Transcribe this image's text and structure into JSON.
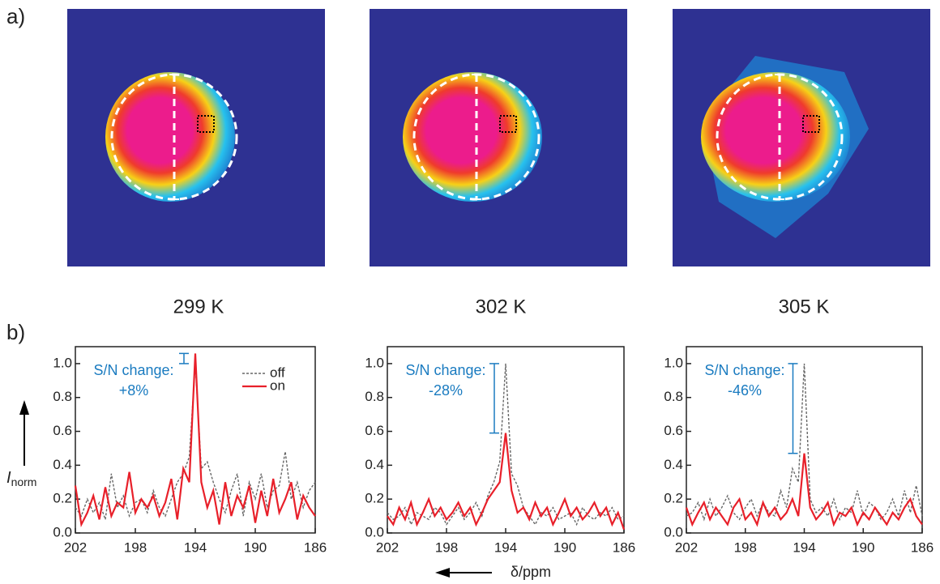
{
  "panel_labels": [
    "a)",
    "b)"
  ],
  "images": [
    {
      "label": "299 K"
    },
    {
      "label": "302 K"
    },
    {
      "label": "305 K"
    }
  ],
  "chart_data": [
    {
      "type": "line",
      "xlim": [
        202,
        186
      ],
      "xticks": [
        202,
        198,
        194,
        190,
        186
      ],
      "ylim": [
        0,
        1.1
      ],
      "yticks": [
        {
          "value": 0,
          "label": "0.0"
        },
        0.2,
        0.4,
        0.6,
        0.8,
        {
          "value": 1,
          "label": "1.0"
        }
      ],
      "y_label": {
        "main": "I",
        "sub": "norm"
      },
      "legend": "upper right",
      "annotation": [
        "S/N change:",
        "+8%"
      ],
      "bracket": [
        1.0,
        1.06
      ],
      "x": [
        202,
        201.6,
        201.2,
        200.8,
        200.4,
        200,
        199.6,
        199.2,
        198.8,
        198.4,
        198,
        197.6,
        197.2,
        196.8,
        196.4,
        196,
        195.6,
        195.2,
        194.8,
        194.4,
        194,
        193.6,
        193.2,
        192.8,
        192.4,
        192,
        191.6,
        191.2,
        190.8,
        190.4,
        190,
        189.6,
        189.2,
        188.8,
        188.4,
        188,
        187.6,
        187.2,
        186.8,
        186.4,
        186
      ],
      "series": [
        {
          "name": "off",
          "color": "#666666",
          "dash": true,
          "values": [
            0.15,
            0.1,
            0.2,
            0.12,
            0.18,
            0.08,
            0.35,
            0.15,
            0.22,
            0.1,
            0.18,
            0.2,
            0.12,
            0.25,
            0.15,
            0.1,
            0.2,
            0.3,
            0.35,
            0.45,
            1.0,
            0.38,
            0.42,
            0.3,
            0.2,
            0.12,
            0.25,
            0.35,
            0.1,
            0.3,
            0.2,
            0.35,
            0.15,
            0.25,
            0.28,
            0.48,
            0.2,
            0.3,
            0.15,
            0.25,
            0.3
          ]
        },
        {
          "name": "on",
          "color": "#e8202a",
          "dash": false,
          "values": [
            0.28,
            0.05,
            0.12,
            0.22,
            0.08,
            0.27,
            0.1,
            0.18,
            0.15,
            0.36,
            0.12,
            0.2,
            0.15,
            0.22,
            0.1,
            0.18,
            0.32,
            0.08,
            0.38,
            0.3,
            1.06,
            0.3,
            0.15,
            0.25,
            0.05,
            0.3,
            0.1,
            0.22,
            0.15,
            0.28,
            0.06,
            0.25,
            0.1,
            0.32,
            0.12,
            0.2,
            0.3,
            0.08,
            0.22,
            0.15,
            0.1
          ]
        }
      ]
    },
    {
      "type": "line",
      "xlim": [
        202,
        186
      ],
      "xticks": [
        202,
        198,
        194,
        190,
        186
      ],
      "ylim": [
        0,
        1.1
      ],
      "yticks": [
        {
          "value": 0,
          "label": "0.0"
        },
        0.2,
        0.4,
        0.6,
        0.8,
        {
          "value": 1,
          "label": "1.0"
        }
      ],
      "x_label": "δ/ppm",
      "annotation": [
        "S/N change:",
        "-28%"
      ],
      "bracket": [
        0.59,
        1.0
      ],
      "x": [
        202,
        201.6,
        201.2,
        200.8,
        200.4,
        200,
        199.6,
        199.2,
        198.8,
        198.4,
        198,
        197.6,
        197.2,
        196.8,
        196.4,
        196,
        195.6,
        195.2,
        194.8,
        194.4,
        194,
        193.6,
        193.2,
        192.8,
        192.4,
        192,
        191.6,
        191.2,
        190.8,
        190.4,
        190,
        189.6,
        189.2,
        188.8,
        188.4,
        188,
        187.6,
        187.2,
        186.8,
        186.4,
        186
      ],
      "series": [
        {
          "color": "#666666",
          "dash": true,
          "values": [
            0.12,
            0.08,
            0.1,
            0.15,
            0.05,
            0.12,
            0.1,
            0.08,
            0.15,
            0.12,
            0.05,
            0.1,
            0.15,
            0.08,
            0.12,
            0.18,
            0.1,
            0.22,
            0.3,
            0.42,
            1.0,
            0.35,
            0.28,
            0.15,
            0.1,
            0.05,
            0.12,
            0.1,
            0.15,
            0.08,
            0.1,
            0.12,
            0.05,
            0.15,
            0.1,
            0.08,
            0.12,
            0.1,
            0.15,
            0.08,
            0.1
          ]
        },
        {
          "color": "#e8202a",
          "dash": false,
          "values": [
            0.1,
            0.05,
            0.15,
            0.08,
            0.18,
            0.05,
            0.12,
            0.2,
            0.1,
            0.15,
            0.08,
            0.12,
            0.18,
            0.1,
            0.15,
            0.05,
            0.12,
            0.2,
            0.25,
            0.3,
            0.59,
            0.25,
            0.12,
            0.15,
            0.08,
            0.18,
            0.1,
            0.15,
            0.05,
            0.12,
            0.2,
            0.1,
            0.15,
            0.08,
            0.12,
            0.18,
            0.1,
            0.15,
            0.05,
            0.12,
            0.02
          ]
        }
      ]
    },
    {
      "type": "line",
      "xlim": [
        202,
        186
      ],
      "xticks": [
        202,
        198,
        194,
        190,
        186
      ],
      "ylim": [
        0,
        1.1
      ],
      "yticks": [
        {
          "value": 0,
          "label": "0.0"
        },
        0.2,
        0.4,
        0.6,
        0.8,
        {
          "value": 1,
          "label": "1.0"
        }
      ],
      "annotation": [
        "S/N change:",
        "-46%"
      ],
      "bracket": [
        0.47,
        1.0
      ],
      "x": [
        202,
        201.6,
        201.2,
        200.8,
        200.4,
        200,
        199.6,
        199.2,
        198.8,
        198.4,
        198,
        197.6,
        197.2,
        196.8,
        196.4,
        196,
        195.6,
        195.2,
        194.8,
        194.4,
        194,
        193.6,
        193.2,
        192.8,
        192.4,
        192,
        191.6,
        191.2,
        190.8,
        190.4,
        190,
        189.6,
        189.2,
        188.8,
        188.4,
        188,
        187.6,
        187.2,
        186.8,
        186.4,
        186
      ],
      "series": [
        {
          "color": "#666666",
          "dash": true,
          "values": [
            0.1,
            0.12,
            0.18,
            0.08,
            0.2,
            0.1,
            0.15,
            0.22,
            0.12,
            0.08,
            0.15,
            0.2,
            0.1,
            0.18,
            0.12,
            0.1,
            0.25,
            0.15,
            0.38,
            0.3,
            1.0,
            0.2,
            0.12,
            0.15,
            0.1,
            0.2,
            0.08,
            0.15,
            0.12,
            0.25,
            0.1,
            0.18,
            0.15,
            0.08,
            0.12,
            0.2,
            0.1,
            0.25,
            0.12,
            0.28,
            0.1
          ]
        },
        {
          "color": "#e8202a",
          "dash": false,
          "values": [
            0.15,
            0.05,
            0.12,
            0.18,
            0.08,
            0.15,
            0.1,
            0.05,
            0.15,
            0.2,
            0.08,
            0.12,
            0.05,
            0.18,
            0.1,
            0.15,
            0.08,
            0.12,
            0.2,
            0.1,
            0.47,
            0.15,
            0.08,
            0.12,
            0.18,
            0.05,
            0.12,
            0.1,
            0.15,
            0.05,
            0.12,
            0.08,
            0.15,
            0.1,
            0.05,
            0.12,
            0.08,
            0.15,
            0.2,
            0.1,
            0.05
          ]
        }
      ]
    }
  ]
}
